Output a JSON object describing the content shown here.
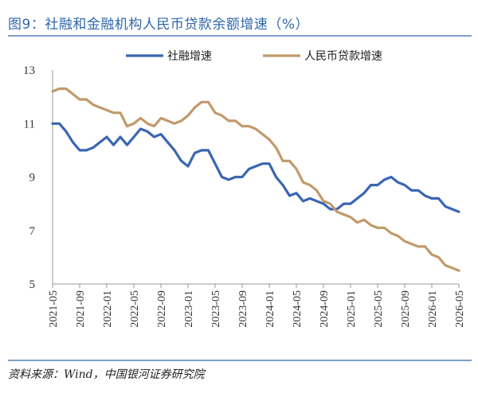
{
  "header": {
    "figure_title": "图9：社融和金融机构人民币贷款余额增速（%）"
  },
  "footer": {
    "source": "资料来源：Wind，中国银河证券研究院"
  },
  "colors": {
    "title": "#2f68a9",
    "rule": "#2f68a9",
    "series_blue": "#3a66b3",
    "series_tan": "#c19a6b"
  },
  "chart_data": {
    "type": "line",
    "title": "",
    "xlabel": "",
    "ylabel": "",
    "ylim": [
      5,
      13
    ],
    "yticks": [
      5,
      7,
      9,
      11,
      13
    ],
    "grid": false,
    "legend_position": "top",
    "x": [
      "2021-05",
      "2021-06",
      "2021-07",
      "2021-08",
      "2021-09",
      "2021-10",
      "2021-11",
      "2021-12",
      "2022-01",
      "2022-02",
      "2022-03",
      "2022-04",
      "2022-05",
      "2022-06",
      "2022-07",
      "2022-08",
      "2022-09",
      "2022-10",
      "2022-11",
      "2022-12",
      "2023-01",
      "2023-02",
      "2023-03",
      "2023-04",
      "2023-05",
      "2023-06",
      "2023-07",
      "2023-08",
      "2023-09",
      "2023-10",
      "2023-11",
      "2023-12",
      "2024-01",
      "2024-02",
      "2024-03",
      "2024-04",
      "2024-05",
      "2024-06",
      "2024-07",
      "2024-08",
      "2024-09",
      "2024-10",
      "2024-11",
      "2024-12",
      "2025-01",
      "2025-02",
      "2025-03",
      "2025-04",
      "2025-05",
      "2025-06",
      "2025-07",
      "2025-08",
      "2025-09",
      "2025-10",
      "2025-11",
      "2025-12",
      "2026-01",
      "2026-02",
      "2026-03",
      "2026-04",
      "2026-05"
    ],
    "xticks": [
      "2021-05",
      "2021-09",
      "2022-01",
      "2022-05",
      "2022-09",
      "2023-01",
      "2023-05",
      "2023-09",
      "2024-01",
      "2024-05",
      "2024-09",
      "2025-01",
      "2025-05",
      "2025-09",
      "2026-01",
      "2026-05"
    ],
    "series": [
      {
        "name": "社融增速",
        "color": "#3a66b3",
        "values": [
          11.0,
          11.0,
          10.7,
          10.3,
          10.0,
          10.0,
          10.1,
          10.3,
          10.5,
          10.2,
          10.5,
          10.2,
          10.5,
          10.8,
          10.7,
          10.5,
          10.6,
          10.3,
          10.0,
          9.6,
          9.4,
          9.9,
          10.0,
          10.0,
          9.5,
          9.0,
          8.9,
          9.0,
          9.0,
          9.3,
          9.4,
          9.5,
          9.5,
          9.0,
          8.7,
          8.3,
          8.4,
          8.1,
          8.2,
          8.1,
          8.0,
          7.8,
          7.8,
          8.0,
          8.0,
          8.2,
          8.4,
          8.7,
          8.7,
          8.9,
          9.0,
          8.8,
          8.7,
          8.5,
          8.5,
          8.3,
          8.2,
          8.2,
          7.9,
          7.8,
          7.7
        ]
      },
      {
        "name": "人民币贷款增速",
        "color": "#c19a6b",
        "values": [
          12.2,
          12.3,
          12.3,
          12.1,
          11.9,
          11.9,
          11.7,
          11.6,
          11.5,
          11.4,
          11.4,
          10.9,
          11.0,
          11.2,
          11.0,
          10.9,
          11.2,
          11.1,
          11.0,
          11.1,
          11.3,
          11.6,
          11.8,
          11.8,
          11.4,
          11.3,
          11.1,
          11.1,
          10.9,
          10.9,
          10.8,
          10.6,
          10.4,
          10.1,
          9.6,
          9.6,
          9.3,
          8.8,
          8.7,
          8.5,
          8.1,
          8.0,
          7.7,
          7.6,
          7.5,
          7.3,
          7.4,
          7.2,
          7.1,
          7.1,
          6.9,
          6.8,
          6.6,
          6.5,
          6.4,
          6.4,
          6.1,
          6.0,
          5.7,
          5.6,
          5.5
        ]
      }
    ]
  }
}
